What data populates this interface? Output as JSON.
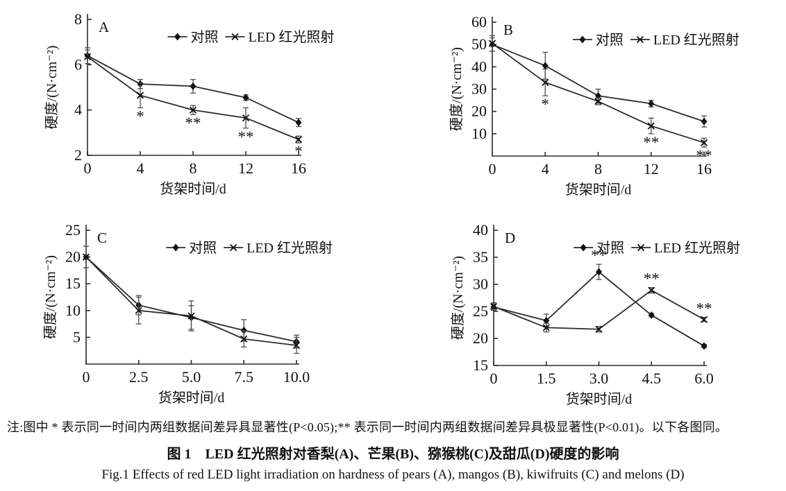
{
  "figure": {
    "note": "注:图中 * 表示同一时间内两组数据间差异具显著性(P<0.05);** 表示同一时间内两组数据间差异具极显著性(P<0.01)。以下各图同。",
    "caption_zh": "图 1　LED 红光照射对香梨(A)、芒果(B)、猕猴桃(C)及甜瓜(D)硬度的影响",
    "caption_en": "Fig.1  Effects of red LED light irradiation on hardness of pears (A), mangos (B), kiwifruits (C) and melons (D)"
  },
  "colors": {
    "background": "#ffffff",
    "line": "#2b2b2b",
    "marker": "#111111",
    "error_bar": "#4d4d4d",
    "text": "#111111"
  },
  "chart_data": [
    {
      "type": "line",
      "panel": "A",
      "fruit": "pears",
      "ylabel": "硬度/(N·cm⁻²)",
      "xlabel": "货架时间/d",
      "ylim": [
        2,
        8
      ],
      "yticks": [
        2,
        4,
        6,
        8
      ],
      "x": [
        0,
        4,
        8,
        12,
        16
      ],
      "xtick_labels": [
        "0",
        "4",
        "8",
        "12",
        "16"
      ],
      "legend_position": "top-right-inside",
      "series": [
        {
          "name": "对照",
          "marker": "diamond",
          "values": [
            6.4,
            5.15,
            5.05,
            4.55,
            3.45
          ],
          "errors": [
            0.35,
            0.2,
            0.3,
            0.12,
            0.18
          ]
        },
        {
          "name": "LED 红光照射",
          "marker": "x",
          "values": [
            6.35,
            4.65,
            4.0,
            3.65,
            2.7
          ],
          "errors": [
            0.3,
            0.55,
            0.2,
            0.45,
            0.15
          ]
        }
      ],
      "annotations": [
        {
          "x": 4,
          "series": 1,
          "text": "*",
          "position": "below"
        },
        {
          "x": 8,
          "series": 1,
          "text": "**",
          "position": "below"
        },
        {
          "x": 12,
          "series": 1,
          "text": "**",
          "position": "below"
        },
        {
          "x": 16,
          "series": 1,
          "text": "*",
          "position": "below"
        }
      ]
    },
    {
      "type": "line",
      "panel": "B",
      "fruit": "mangos",
      "ylabel": "硬度/(N·cm⁻²)",
      "xlabel": "货架时间/d",
      "ylim": [
        0,
        60
      ],
      "yticks": [
        10,
        20,
        30,
        40,
        50,
        60
      ],
      "x": [
        0,
        4,
        8,
        12,
        16
      ],
      "xtick_labels": [
        "0",
        "4",
        "8",
        "12",
        "16"
      ],
      "legend_position": "top-right-inside",
      "series": [
        {
          "name": "对照",
          "marker": "diamond",
          "values": [
            50,
            40.5,
            27,
            23.5,
            15.5
          ],
          "errors": [
            3,
            6,
            3,
            1.5,
            2.5
          ]
        },
        {
          "name": "LED 红光照射",
          "marker": "x",
          "values": [
            50.5,
            33,
            24.5,
            13.5,
            6
          ],
          "errors": [
            3.5,
            6,
            1.5,
            3.5,
            2
          ]
        }
      ],
      "annotations": [
        {
          "x": 4,
          "series": 1,
          "text": "*",
          "position": "below"
        },
        {
          "x": 12,
          "series": 1,
          "text": "**",
          "position": "below"
        },
        {
          "x": 16,
          "series": 1,
          "text": "**",
          "position": "below"
        }
      ]
    },
    {
      "type": "line",
      "panel": "C",
      "fruit": "kiwifruits",
      "ylabel": "硬度/(N·cm⁻²)",
      "xlabel": "货架时间/d",
      "ylim": [
        0,
        25
      ],
      "yticks": [
        5,
        10,
        15,
        20,
        25
      ],
      "x": [
        0,
        2.5,
        5,
        7.5,
        10
      ],
      "xtick_labels": [
        "0",
        "2.5",
        "5.0",
        "7.5",
        "10.0"
      ],
      "legend_position": "top-right-inside",
      "series": [
        {
          "name": "对照",
          "marker": "diamond",
          "values": [
            20,
            11,
            8.7,
            6.3,
            4.2
          ],
          "errors": [
            2,
            1.8,
            2.2,
            2,
            1.2
          ]
        },
        {
          "name": "LED 红光照射",
          "marker": "x",
          "values": [
            20,
            10,
            9,
            4.7,
            3.5
          ],
          "errors": [
            2,
            2.5,
            2.8,
            1.5,
            1.5
          ]
        }
      ],
      "annotations": []
    },
    {
      "type": "line",
      "panel": "D",
      "fruit": "melons",
      "ylabel": "硬度/(N·cm⁻²)",
      "xlabel": "货架时间/d",
      "ylim": [
        15,
        40
      ],
      "yticks": [
        15,
        20,
        25,
        30,
        35,
        40
      ],
      "x": [
        0,
        1.5,
        3,
        4.5,
        6
      ],
      "xtick_labels": [
        "0",
        "1.5",
        "3.0",
        "4.5",
        "6.0"
      ],
      "legend_position": "top-right-inside",
      "series": [
        {
          "name": "对照",
          "marker": "diamond",
          "values": [
            25.8,
            23.3,
            32.3,
            24.3,
            18.6
          ],
          "errors": [
            0.6,
            1.2,
            1.4,
            0.3,
            0.3
          ]
        },
        {
          "name": "LED 红光照射",
          "marker": "x",
          "values": [
            25.9,
            22.0,
            21.7,
            28.9,
            23.5
          ],
          "errors": [
            0.7,
            0.8,
            0.5,
            0.5,
            0.4
          ]
        }
      ],
      "annotations": [
        {
          "x": 3,
          "series": 0,
          "text": "**",
          "position": "above"
        },
        {
          "x": 4.5,
          "series": 1,
          "text": "**",
          "position": "above"
        },
        {
          "x": 6,
          "series": 1,
          "text": "**",
          "position": "above"
        }
      ]
    }
  ]
}
